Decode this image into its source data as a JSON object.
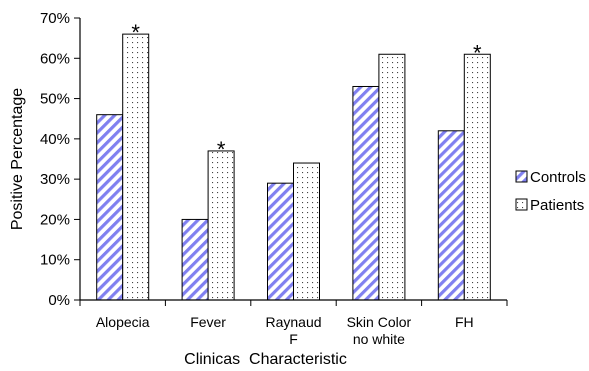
{
  "chart_data": {
    "type": "bar",
    "categories": [
      [
        "Alopecia"
      ],
      [
        "Fever"
      ],
      [
        "Raynaud",
        "F"
      ],
      [
        "Skin Color",
        "no white"
      ],
      [
        "FH"
      ]
    ],
    "series": [
      {
        "name": "Controls",
        "values": [
          46,
          20,
          29,
          53,
          42
        ],
        "pattern": "diagonal-stripes",
        "color": "#8080f0"
      },
      {
        "name": "Patients",
        "values": [
          66,
          37,
          34,
          61,
          61
        ],
        "pattern": "dots",
        "color": "#000000"
      }
    ],
    "significance": [
      "*",
      "*",
      "",
      "",
      "*"
    ],
    "xlabel": "Clinicas  Characteristic",
    "ylabel": "Positive  Percentage",
    "ylim": [
      0,
      70
    ],
    "yticks": [
      "0%",
      "10%",
      "20%",
      "30%",
      "40%",
      "50%",
      "60%",
      "70%"
    ],
    "grid": false,
    "legend_position": "right"
  }
}
